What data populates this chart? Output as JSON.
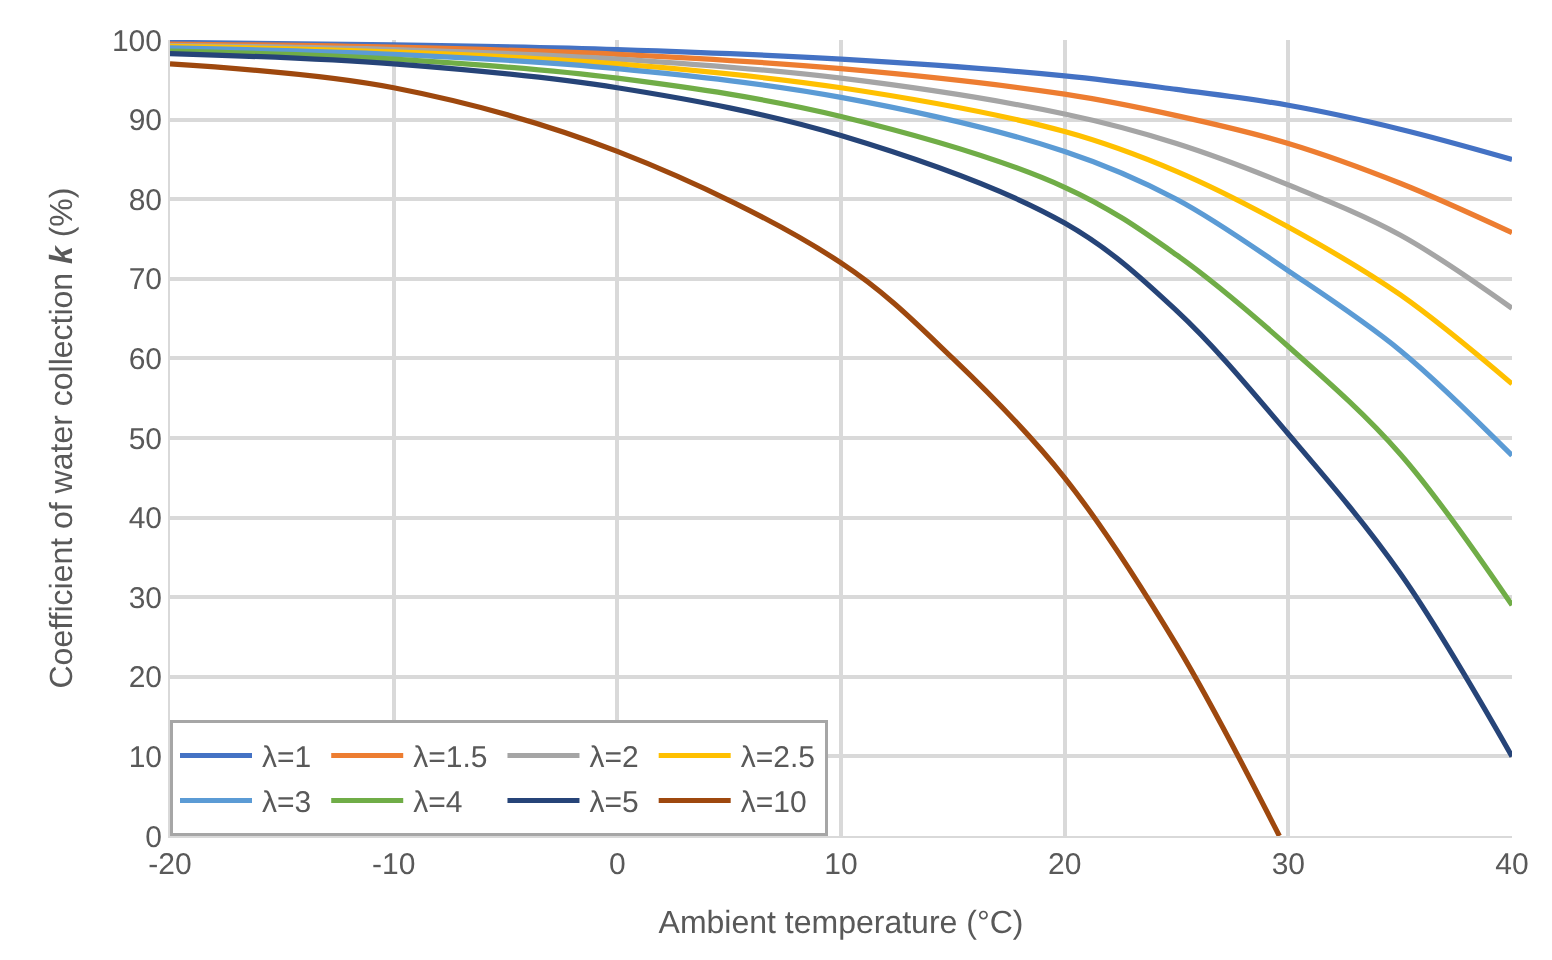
{
  "chart_data": {
    "type": "line",
    "xlabel": "Ambient temperature (°C)",
    "ylabel": "Coefficient of water collection *k* (%)",
    "x": [
      -20,
      -10,
      0,
      10,
      20,
      25,
      30,
      35,
      40
    ],
    "xlim": [
      -20,
      40
    ],
    "xticks": [
      -20,
      -10,
      0,
      10,
      20,
      30,
      40
    ],
    "ylim": [
      0,
      100
    ],
    "yticks": [
      0,
      10,
      20,
      30,
      40,
      50,
      60,
      70,
      80,
      90,
      100
    ],
    "grid": true,
    "legend": "bottom left",
    "marker": "none",
    "line_style": "solid",
    "series": [
      {
        "name": "λ=1",
        "color": "#4472c4",
        "values": [
          99.7,
          99.4,
          98.8,
          97.6,
          95.5,
          93.8,
          91.8,
          88.8,
          85
        ]
      },
      {
        "name": "λ=1.5",
        "color": "#ed7d31",
        "values": [
          99.5,
          99.1,
          98.2,
          96.4,
          93.2,
          90.5,
          87,
          82,
          75.8
        ]
      },
      {
        "name": "λ=2",
        "color": "#a5a5a5",
        "values": [
          99.3,
          98.8,
          97.6,
          95.2,
          90.7,
          87,
          81.8,
          75.5,
          66.3
        ]
      },
      {
        "name": "λ=2.5",
        "color": "#ffc000",
        "values": [
          99.2,
          98.5,
          97,
          94,
          88.5,
          83.5,
          76.5,
          68,
          56.8
        ]
      },
      {
        "name": "λ=3",
        "color": "#5b9bd5",
        "values": [
          99,
          98.2,
          96.4,
          92.8,
          86,
          80,
          71,
          61,
          47.8
        ]
      },
      {
        "name": "λ=4",
        "color": "#70ad47",
        "values": [
          98.6,
          97.6,
          95.2,
          90.4,
          81.5,
          73,
          61.5,
          48,
          29
        ]
      },
      {
        "name": "λ=5",
        "color": "#264478",
        "values": [
          98.3,
          97,
          94,
          88,
          77,
          66,
          50.5,
          33,
          10
        ]
      },
      {
        "name": "λ=10",
        "color": "#9e480e",
        "x": [
          -20,
          -10,
          0,
          10,
          15,
          20,
          25,
          29.6
        ],
        "values": [
          97,
          94,
          86,
          72,
          60,
          45,
          24,
          0
        ]
      }
    ]
  }
}
